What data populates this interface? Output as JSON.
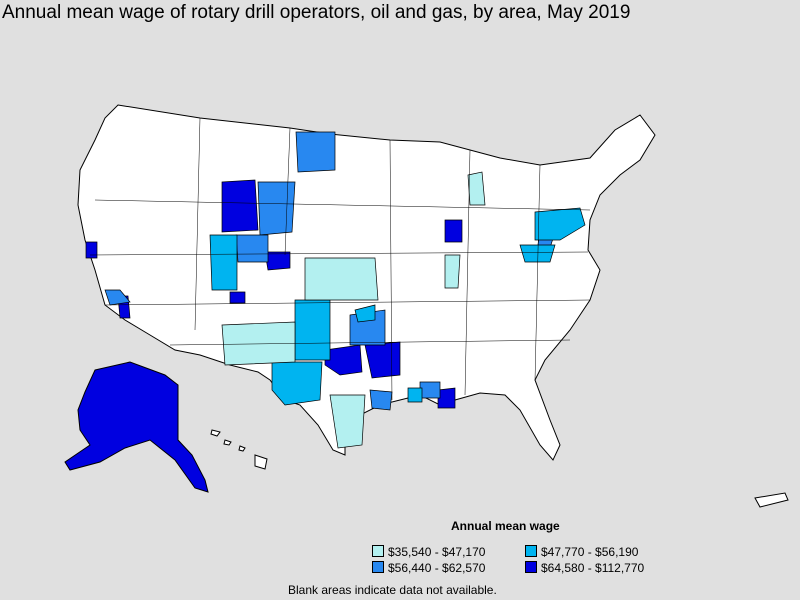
{
  "title": "Annual mean wage of rotary drill operators, oil and gas, by area, May 2019",
  "legend": {
    "title": "Annual mean wage",
    "items": [
      {
        "label": "$35,540 - $47,170",
        "color": "#b3f0f0"
      },
      {
        "label": "$47,770 - $56,190",
        "color": "#00b4f0"
      },
      {
        "label": "$56,440 - $62,570",
        "color": "#2888f0"
      },
      {
        "label": "$64,580 - $112,770",
        "color": "#0000e0"
      }
    ]
  },
  "note": "Blank areas indicate data not available.",
  "colors": {
    "background": "#e0e0e0",
    "land": "#ffffff",
    "border": "#000000"
  }
}
